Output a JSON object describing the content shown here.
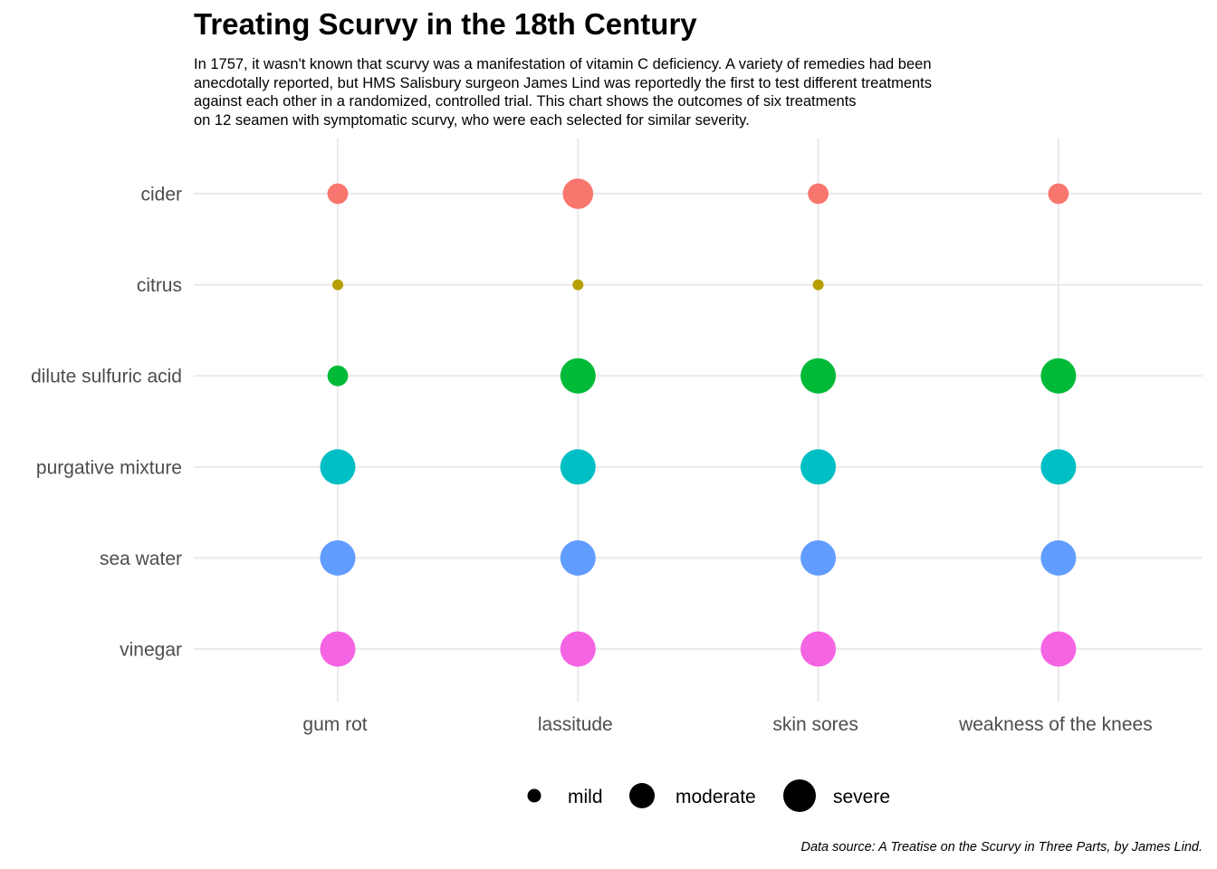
{
  "chart_data": {
    "type": "scatter",
    "title": "Treating Scurvy in the 18th Century",
    "subtitle_lines": [
      "In 1757, it wasn't known that scurvy was a manifestation of vitamin C deficiency. A variety of remedies had been",
      "anecdotally reported, but HMS Salisbury surgeon James Lind was reportedly the first to test different treatments",
      "against each other in a randomized, controlled trial. This chart shows the outcomes of six treatments",
      "on 12 seamen with symptomatic scurvy, who were each selected for similar severity."
    ],
    "caption": "Data source: A Treatise on the Scurvy in Three Parts, by James Lind.",
    "x_categories": [
      "gum rot",
      "lassitude",
      "skin sores",
      "weakness of the knees"
    ],
    "y_categories": [
      "cider",
      "citrus",
      "dilute sulfuric acid",
      "purgative mixture",
      "sea water",
      "vinegar"
    ],
    "size_scale": [
      "mild",
      "moderate",
      "severe"
    ],
    "legend_position": "bottom",
    "grid": true,
    "series": [
      {
        "treatment": "cider",
        "color": "#F8766D",
        "outcomes": [
          1.5,
          2.5,
          1.5,
          1.5
        ]
      },
      {
        "treatment": "citrus",
        "color": "#B79F00",
        "outcomes": [
          0.5,
          0.5,
          0.5,
          null
        ]
      },
      {
        "treatment": "dilute sulfuric acid",
        "color": "#00BA38",
        "outcomes": [
          1.5,
          3.0,
          3.0,
          3.0
        ]
      },
      {
        "treatment": "purgative mixture",
        "color": "#00BFC4",
        "outcomes": [
          3.0,
          3.0,
          3.0,
          3.0
        ]
      },
      {
        "treatment": "sea water",
        "color": "#619CFF",
        "outcomes": [
          3.0,
          3.0,
          3.0,
          3.0
        ]
      },
      {
        "treatment": "vinegar",
        "color": "#F564E3",
        "outcomes": [
          3.0,
          3.0,
          3.0,
          3.0
        ]
      }
    ],
    "legend": [
      {
        "label": "mild",
        "value": 1
      },
      {
        "label": "moderate",
        "value": 2
      },
      {
        "label": "severe",
        "value": 3
      }
    ],
    "colors": {
      "grid": "#EBEBEB",
      "axis_text": "#4D4D4D",
      "legend_point": "#000000"
    }
  }
}
